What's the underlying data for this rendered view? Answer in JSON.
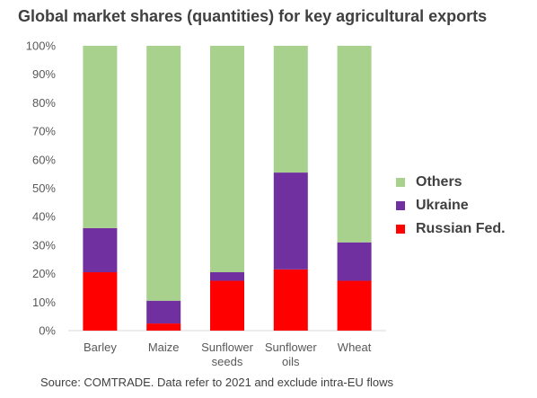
{
  "chart_data": {
    "type": "bar",
    "stacked": true,
    "title": "Global market shares (quantities) for key agricultural exports",
    "categories": [
      [
        "Barley"
      ],
      [
        "Maize"
      ],
      [
        "Sunflower",
        "seeds"
      ],
      [
        "Sunflower",
        "oils"
      ],
      [
        "Wheat"
      ]
    ],
    "series": [
      {
        "name": "Russian Fed.",
        "color": "#ff0000",
        "values": [
          20.5,
          2.5,
          17.5,
          21.5,
          17.5
        ]
      },
      {
        "name": "Ukraine",
        "color": "#7030a0",
        "values": [
          15.5,
          8,
          3,
          34,
          13.5
        ]
      },
      {
        "name": "Others",
        "color": "#a9d18e",
        "values": [
          64,
          89.5,
          79.5,
          44.5,
          69
        ]
      }
    ],
    "legend_order": [
      "Others",
      "Ukraine",
      "Russian Fed."
    ],
    "legend_position": "right",
    "ylim": [
      0,
      100
    ],
    "yticks": [
      "0%",
      "10%",
      "20%",
      "30%",
      "40%",
      "50%",
      "60%",
      "70%",
      "80%",
      "90%",
      "100%"
    ],
    "grid": false,
    "source": "Source: COMTRADE. Data refer to 2021 and exclude intra-EU flows"
  }
}
